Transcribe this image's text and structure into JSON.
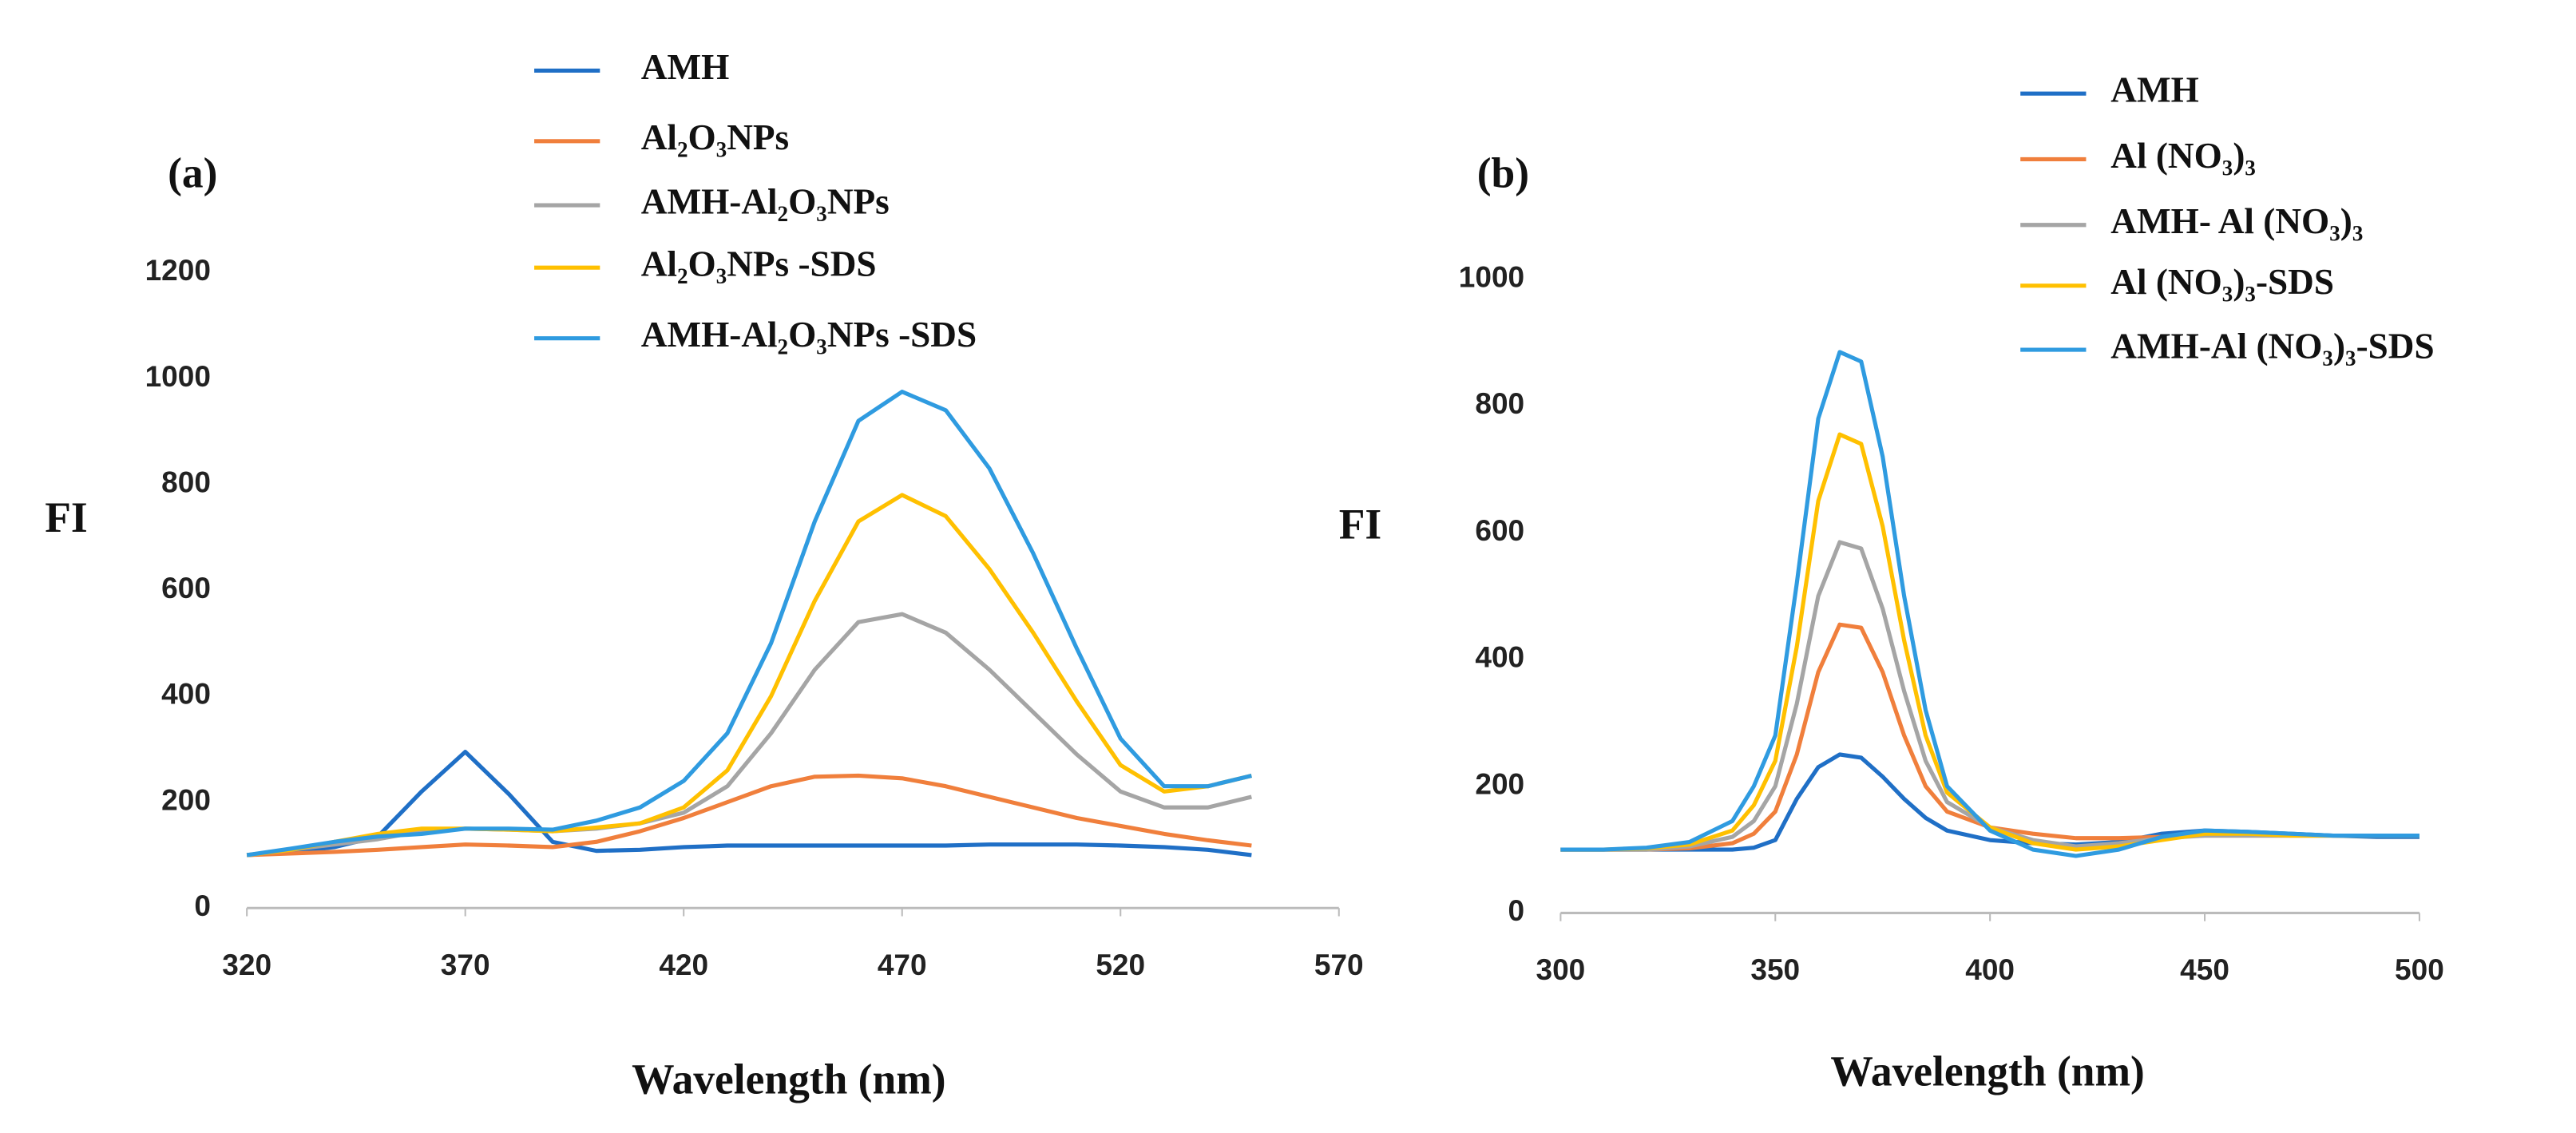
{
  "chart_data": [
    {
      "type": "line",
      "title": "(a)",
      "y_label": "FI",
      "x_label": "Wavelength (nm)",
      "xlim": [
        320,
        570
      ],
      "xticks": [
        320,
        370,
        420,
        470,
        520,
        570
      ],
      "ylim": [
        0,
        1200
      ],
      "yticks": [
        0,
        200,
        400,
        600,
        800,
        1000,
        1200
      ],
      "x": [
        320,
        330,
        340,
        350,
        360,
        370,
        380,
        390,
        400,
        410,
        420,
        430,
        440,
        450,
        460,
        470,
        480,
        490,
        500,
        510,
        520,
        530,
        540,
        550
      ],
      "series": [
        {
          "name": "AMH",
          "color": "#1f6fc6",
          "values": [
            100,
            105,
            115,
            135,
            220,
            295,
            215,
            125,
            108,
            110,
            115,
            118,
            118,
            118,
            118,
            118,
            118,
            120,
            120,
            120,
            118,
            115,
            110,
            100
          ]
        },
        {
          "name": "Al₂O₃NPs",
          "color": "#f07f3c",
          "values": [
            100,
            103,
            106,
            110,
            115,
            120,
            118,
            115,
            125,
            145,
            170,
            200,
            230,
            248,
            250,
            245,
            230,
            210,
            190,
            170,
            155,
            140,
            128,
            118
          ]
        },
        {
          "name": "AMH-Al₂O₃NPs",
          "color": "#a5a5a5",
          "values": [
            100,
            110,
            120,
            130,
            145,
            150,
            148,
            145,
            150,
            160,
            180,
            230,
            330,
            450,
            540,
            555,
            520,
            450,
            370,
            290,
            220,
            190,
            190,
            210
          ]
        },
        {
          "name": "Al₂O₃NPs -SDS",
          "color": "#ffc000",
          "values": [
            100,
            110,
            125,
            140,
            150,
            150,
            148,
            145,
            152,
            160,
            190,
            260,
            400,
            580,
            730,
            780,
            740,
            640,
            520,
            390,
            270,
            220,
            230,
            250
          ]
        },
        {
          "name": "AMH-Al₂O₃NPs -SDS",
          "color": "#2f9be0",
          "values": [
            100,
            112,
            125,
            135,
            140,
            150,
            150,
            148,
            165,
            190,
            240,
            330,
            500,
            730,
            920,
            975,
            940,
            830,
            670,
            490,
            320,
            230,
            230,
            250
          ]
        }
      ]
    },
    {
      "type": "line",
      "title": "(b)",
      "y_label": "FI",
      "x_label": "Wavelength (nm)",
      "xlim": [
        300,
        500
      ],
      "xticks": [
        300,
        350,
        400,
        450,
        500
      ],
      "ylim": [
        0,
        1000
      ],
      "yticks": [
        0,
        200,
        400,
        600,
        800,
        1000
      ],
      "x": [
        300,
        310,
        320,
        330,
        340,
        345,
        350,
        355,
        360,
        365,
        370,
        375,
        380,
        385,
        390,
        400,
        410,
        420,
        430,
        440,
        450,
        460,
        470,
        480,
        490,
        500
      ],
      "series": [
        {
          "name": "AMH",
          "color": "#1f6fc6",
          "values": [
            100,
            100,
            100,
            100,
            100,
            103,
            115,
            180,
            230,
            250,
            245,
            215,
            180,
            150,
            130,
            115,
            110,
            108,
            112,
            125,
            130,
            128,
            125,
            122,
            120,
            120
          ]
        },
        {
          "name": "Al (NO₃)₃",
          "color": "#f07f3c",
          "values": [
            100,
            100,
            100,
            102,
            110,
            125,
            160,
            250,
            380,
            455,
            450,
            380,
            280,
            200,
            160,
            135,
            125,
            118,
            118,
            120,
            122,
            122,
            122,
            122,
            122,
            122
          ]
        },
        {
          "name": "AMH- Al (NO₃)₃",
          "color": "#a5a5a5",
          "values": [
            100,
            100,
            100,
            105,
            120,
            145,
            200,
            330,
            500,
            585,
            575,
            480,
            350,
            240,
            175,
            135,
            115,
            105,
            110,
            118,
            122,
            122,
            122,
            122,
            122,
            122
          ]
        },
        {
          "name": "Al (NO₃)₃-SDS",
          "color": "#ffc000",
          "values": [
            100,
            100,
            102,
            108,
            130,
            170,
            240,
            420,
            650,
            755,
            740,
            610,
            430,
            280,
            190,
            135,
            110,
            100,
            105,
            115,
            125,
            125,
            122,
            122,
            122,
            122
          ]
        },
        {
          "name": "AMH-Al (NO₃)₃-SDS",
          "color": "#2f9be0",
          "values": [
            100,
            100,
            103,
            112,
            145,
            200,
            280,
            520,
            780,
            885,
            870,
            720,
            500,
            320,
            200,
            130,
            100,
            90,
            100,
            120,
            130,
            128,
            125,
            122,
            122,
            122
          ]
        }
      ]
    }
  ]
}
